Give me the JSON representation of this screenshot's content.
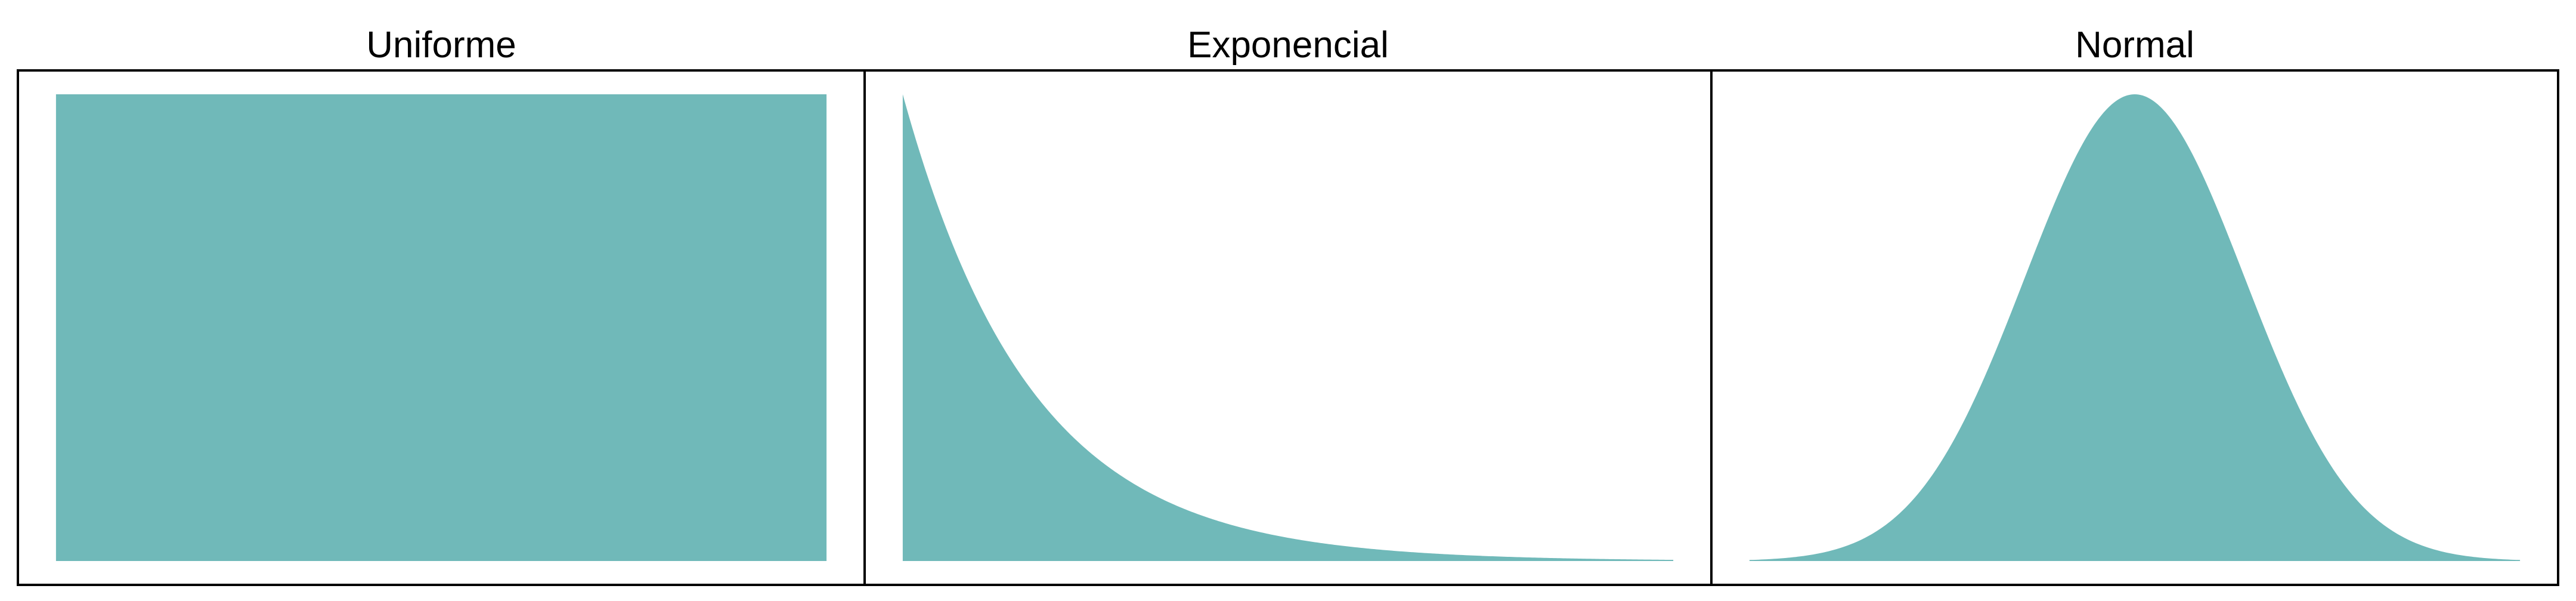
{
  "theme": {
    "fill_color": "#70B9B9",
    "frame_color": "#000000",
    "background": "#FFFFFF"
  },
  "chart_data": [
    {
      "type": "area",
      "title": "Uniforme",
      "distribution": "uniform",
      "xlim": [
        0,
        1
      ],
      "ylim": [
        0,
        1
      ],
      "x": [
        0,
        1
      ],
      "y": [
        1,
        1
      ],
      "xlabel": "",
      "ylabel": "",
      "grid": false,
      "axes_ticks": false
    },
    {
      "type": "area",
      "title": "Exponencial",
      "distribution": "exponential",
      "xlim": [
        0,
        6
      ],
      "ylim": [
        0,
        1
      ],
      "x": [
        0,
        0.25,
        0.5,
        0.75,
        1,
        1.5,
        2,
        2.5,
        3,
        3.5,
        4,
        4.5,
        5,
        5.5,
        6
      ],
      "y": [
        1.0,
        0.779,
        0.607,
        0.472,
        0.368,
        0.223,
        0.135,
        0.082,
        0.05,
        0.03,
        0.018,
        0.011,
        0.007,
        0.004,
        0.002
      ],
      "xlabel": "",
      "ylabel": "",
      "grid": false,
      "axes_ticks": false
    },
    {
      "type": "area",
      "title": "Normal",
      "distribution": "normal",
      "xlim": [
        -3.5,
        3.5
      ],
      "ylim": [
        0,
        1
      ],
      "x": [
        -3.5,
        -3,
        -2.5,
        -2,
        -1.5,
        -1,
        -0.5,
        0,
        0.5,
        1,
        1.5,
        2,
        2.5,
        3,
        3.5
      ],
      "y": [
        0.002,
        0.011,
        0.044,
        0.135,
        0.325,
        0.607,
        0.882,
        1.0,
        0.882,
        0.607,
        0.325,
        0.135,
        0.044,
        0.011,
        0.002
      ],
      "xlabel": "",
      "ylabel": "",
      "grid": false,
      "axes_ticks": false
    }
  ]
}
